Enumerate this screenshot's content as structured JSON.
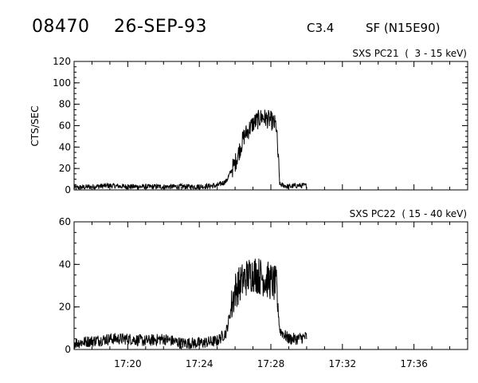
{
  "header": {
    "event_id": "08470",
    "date": "26-SEP-93",
    "goes_class": "C3.4",
    "flare_info": "SF (N15E90)"
  },
  "chart_data": [
    {
      "type": "line",
      "title": "SXS PC21  (  3 - 15 keV)",
      "ylabel": "CTS/SEC",
      "xlabel": "",
      "xlim": [
        "17:17",
        "17:39"
      ],
      "ylim": [
        0,
        120
      ],
      "yticks": [
        0,
        20,
        40,
        60,
        80,
        100,
        120
      ],
      "xticks": [
        "17:20",
        "17:24",
        "17:28",
        "17:32",
        "17:36"
      ],
      "grid": false,
      "series": [
        {
          "x": [
            "17:17",
            "17:18",
            "17:19",
            "17:20",
            "17:21",
            "17:22",
            "17:23",
            "17:24",
            "17:25",
            "17:25.5",
            "17:26",
            "17:26.5",
            "17:27",
            "17:27.5",
            "17:28",
            "17:28.3",
            "17:28.5",
            "17:29",
            "17:29.5",
            "17:30"
          ],
          "values": [
            2,
            3,
            4,
            3,
            3,
            3,
            3,
            3,
            4,
            8,
            25,
            50,
            62,
            68,
            65,
            60,
            5,
            3,
            4,
            4
          ]
        }
      ]
    },
    {
      "type": "line",
      "title": "SXS PC22  ( 15 - 40 keV)",
      "ylabel": "",
      "xlabel": "",
      "xlim": [
        "17:17",
        "17:39"
      ],
      "ylim": [
        0,
        60
      ],
      "yticks": [
        0,
        20,
        40,
        60
      ],
      "xticks": [
        "17:20",
        "17:24",
        "17:28",
        "17:32",
        "17:36"
      ],
      "grid": false,
      "series": [
        {
          "x": [
            "17:17",
            "17:18",
            "17:19",
            "17:20",
            "17:21",
            "17:22",
            "17:23",
            "17:24",
            "17:25",
            "17:25.5",
            "17:26",
            "17:26.5",
            "17:27",
            "17:27.5",
            "17:28",
            "17:28.3",
            "17:28.5",
            "17:29",
            "17:29.5",
            "17:30"
          ],
          "values": [
            3,
            4,
            5,
            5,
            4,
            5,
            3,
            3,
            4,
            8,
            28,
            33,
            36,
            34,
            32,
            30,
            9,
            5,
            5,
            6
          ]
        }
      ]
    }
  ]
}
